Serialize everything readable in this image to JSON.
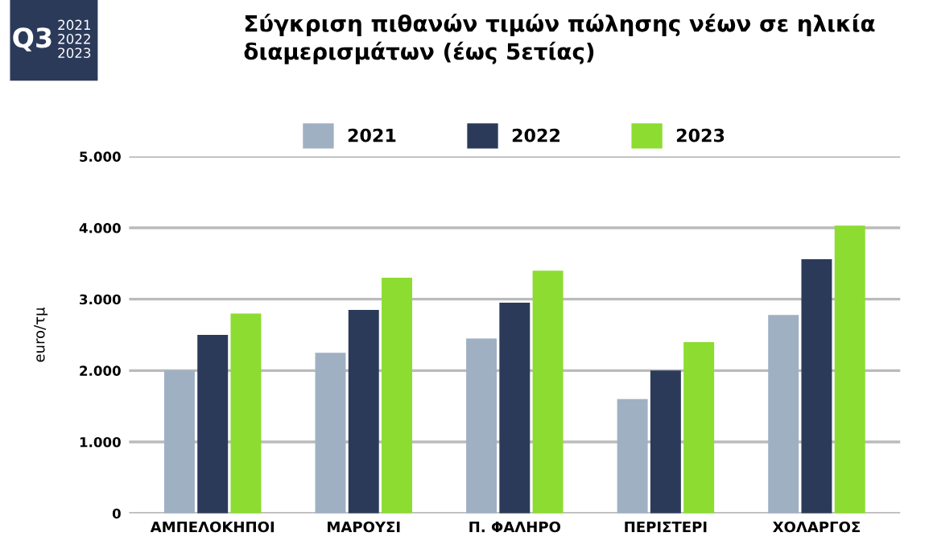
{
  "chart_data": {
    "type": "bar",
    "title": "Σύγκριση πιθανών τιμών πώλησης νέων σε ηλικία\nδιαμερισμάτων (έως 5ετίας)",
    "annotations": [
      "Q3",
      "2021\n2022\n2023"
    ],
    "ylabel": "euro/τμ",
    "categories": [
      "ΑΜΠΕΛΟΚΗΠΟΙ",
      "ΜΑΡΟΥΣΙ",
      "Π. ΦΑΛΗΡΟ",
      "ΠΕΡΙΣΤΕΡΙ",
      "ΧΟΛΑΡΓΟΣ"
    ],
    "series": [
      {
        "name": "2021",
        "color": "#9fb0c3",
        "values": [
          2000,
          2250,
          2450,
          1600,
          2780
        ]
      },
      {
        "name": "2022",
        "color": "#2c3a5a",
        "values": [
          2500,
          2850,
          2950,
          2000,
          3560
        ]
      },
      {
        "name": "2023",
        "color": "#8ddc32",
        "values": [
          2800,
          3300,
          3400,
          2400,
          4030
        ]
      }
    ],
    "ylim": [
      0,
      5000
    ],
    "yticks": [
      {
        "value": 0,
        "label": "0"
      },
      {
        "value": 1000,
        "label": "1.000"
      },
      {
        "value": 2000,
        "label": "2.000"
      },
      {
        "value": 3000,
        "label": "3.000"
      },
      {
        "value": 4000,
        "label": "4.000"
      },
      {
        "value": 5000,
        "label": "5.000"
      }
    ],
    "grid": "y",
    "legend": "top"
  }
}
